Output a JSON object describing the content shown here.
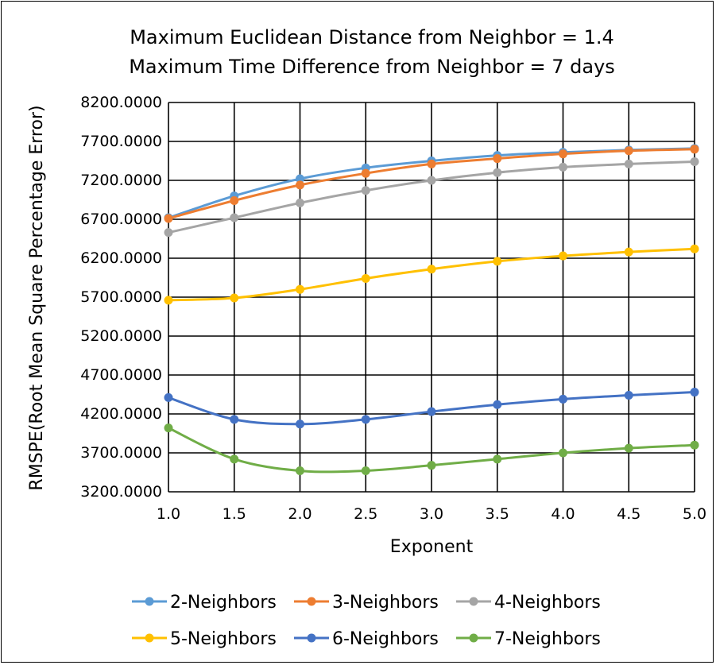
{
  "chart_data": {
    "type": "line",
    "title_lines": [
      "Maximum Euclidean Distance from Neighbor = 1.4",
      "Maximum Time Difference from Neighbor = 7 days"
    ],
    "xlabel": "Exponent",
    "ylabel": "RMSPE(Root Mean Square Percentage Error)",
    "x": [
      1.0,
      1.5,
      2.0,
      2.5,
      3.0,
      3.5,
      4.0,
      4.5,
      5.0
    ],
    "x_tick_labels": [
      "1.0",
      "1.5",
      "2.0",
      "2.5",
      "3.0",
      "3.5",
      "4.0",
      "4.5",
      "5.0"
    ],
    "ylim": [
      3200,
      8200
    ],
    "y_ticks": [
      3200,
      3700,
      4200,
      4700,
      5200,
      5700,
      6200,
      6700,
      7200,
      7700,
      8200
    ],
    "y_tick_labels": [
      "3200.0000",
      "3700.0000",
      "4200.0000",
      "4700.0000",
      "5200.0000",
      "5700.0000",
      "6200.0000",
      "6700.0000",
      "7200.0000",
      "7700.0000",
      "8200.0000"
    ],
    "grid": true,
    "legend_position": "bottom",
    "smoothed": true,
    "series": [
      {
        "name": "2-Neighbors",
        "color": "#5B9BD5",
        "values": [
          6720,
          7000,
          7220,
          7360,
          7450,
          7520,
          7560,
          7590,
          7610
        ]
      },
      {
        "name": "3-Neighbors",
        "color": "#ED7D31",
        "values": [
          6710,
          6940,
          7140,
          7290,
          7410,
          7480,
          7540,
          7580,
          7600
        ]
      },
      {
        "name": "4-Neighbors",
        "color": "#A5A5A5",
        "values": [
          6530,
          6720,
          6910,
          7070,
          7200,
          7300,
          7370,
          7410,
          7440
        ]
      },
      {
        "name": "5-Neighbors",
        "color": "#FFC000",
        "values": [
          5660,
          5690,
          5800,
          5940,
          6060,
          6160,
          6230,
          6280,
          6320
        ]
      },
      {
        "name": "6-Neighbors",
        "color": "#4472C4",
        "values": [
          4410,
          4130,
          4070,
          4130,
          4230,
          4320,
          4390,
          4440,
          4480
        ]
      },
      {
        "name": "7-Neighbors",
        "color": "#70AD47",
        "values": [
          4020,
          3620,
          3470,
          3470,
          3540,
          3620,
          3700,
          3760,
          3800
        ]
      }
    ]
  }
}
